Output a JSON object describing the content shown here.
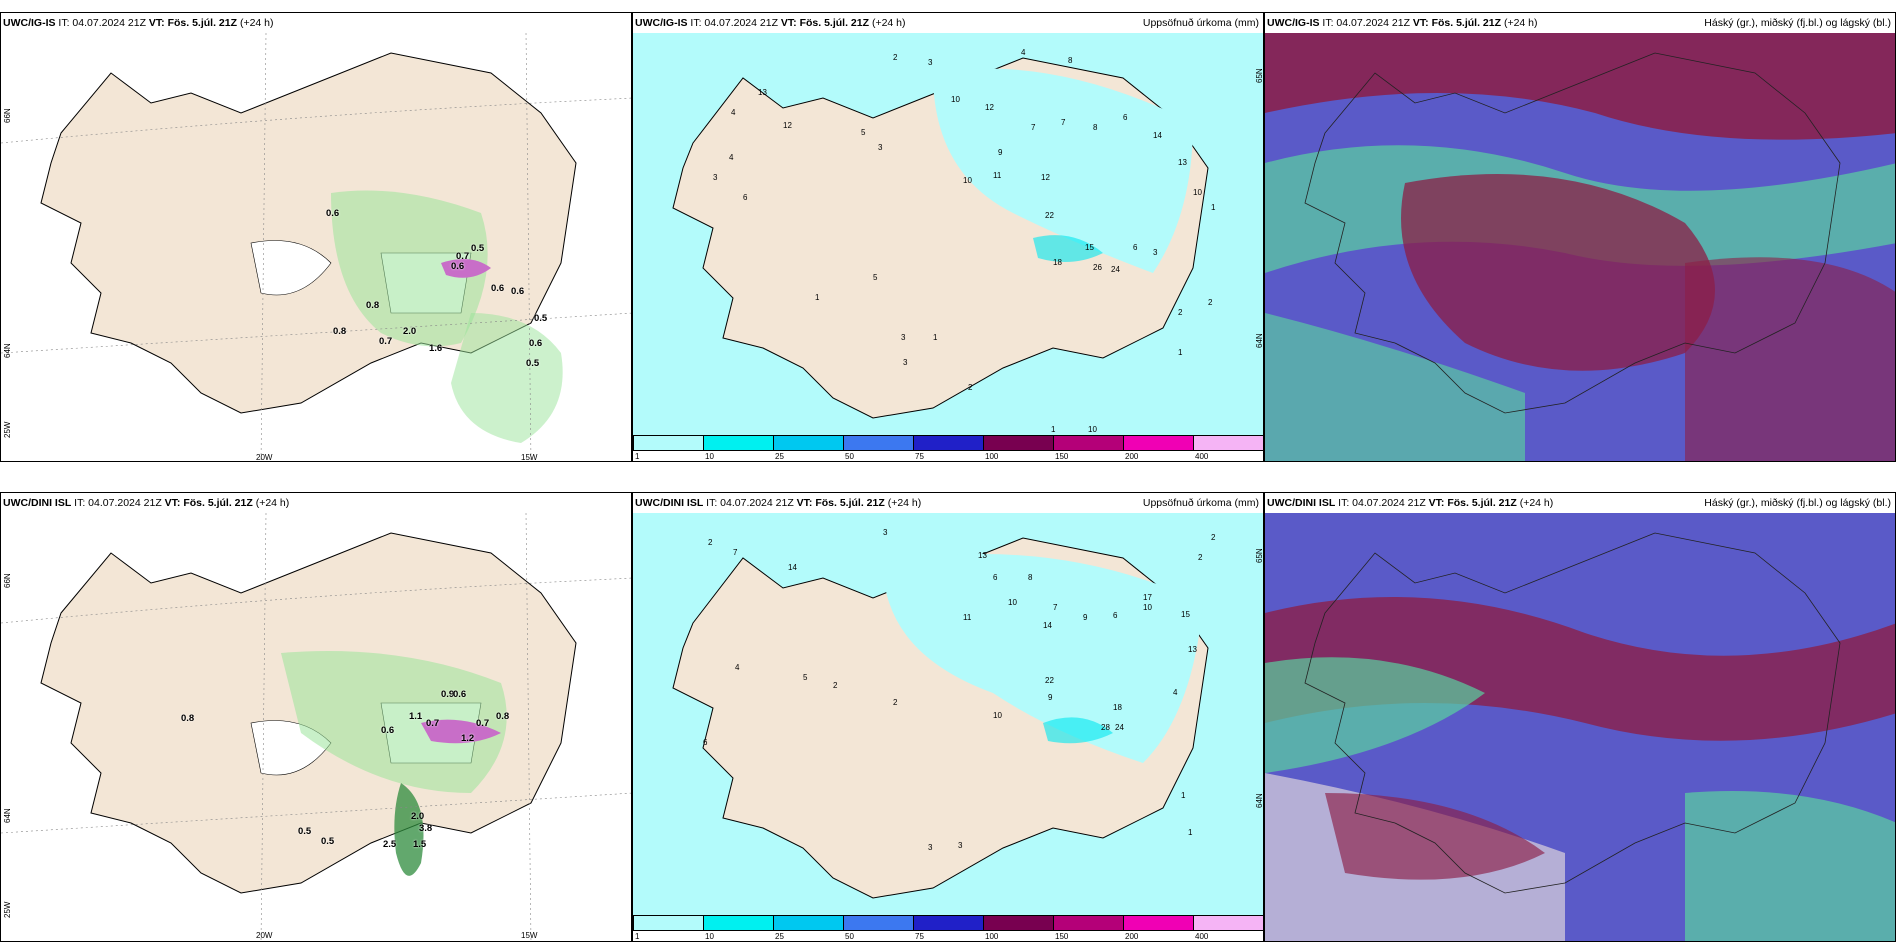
{
  "panels": [
    {
      "id": "r1c1",
      "source": "UWC/IG-IS",
      "it": "IT: 04.07.2024 21Z",
      "vt_label": "VT:",
      "vt": "Fös. 5.júl. 21Z",
      "lead": "(+24 h)",
      "right_title": "",
      "lat_labels": [
        "66N",
        "64N",
        "25W"
      ],
      "lon_labels": [
        "20W",
        "15W"
      ],
      "snow_values": [
        "0.6",
        "0.5",
        "0.7",
        "0.6",
        "0.6",
        "0.6",
        "0.8",
        "0.8",
        "0.7",
        "2.0",
        "1.6",
        "0.5",
        "0.6",
        "0.5"
      ]
    },
    {
      "id": "r1c2",
      "source": "UWC/IG-IS",
      "it": "IT: 04.07.2024 21Z",
      "vt_label": "VT:",
      "vt": "Fös. 5.júl. 21Z",
      "lead": "(+24 h)",
      "right_title": "Uppsöfnuð úrkoma (mm)",
      "lat_labels": [
        "65N",
        "64N"
      ],
      "precip_values": [
        "2",
        "3",
        "4",
        "8",
        "13",
        "12",
        "4",
        "5",
        "3",
        "10",
        "12",
        "7",
        "7",
        "8",
        "6",
        "14",
        "9",
        "11",
        "10",
        "13",
        "10",
        "22",
        "12",
        "15",
        "18",
        "26",
        "24",
        "3",
        "6",
        "2",
        "2",
        "1",
        "5",
        "3",
        "1",
        "2",
        "3",
        "1",
        "10",
        "1",
        "1",
        "4",
        "3",
        "6"
      ]
    },
    {
      "id": "r1c3",
      "source": "UWC/IG-IS",
      "it": "IT: 04.07.2024 21Z",
      "vt_label": "VT:",
      "vt": "Fös. 5.júl. 21Z",
      "lead": "(+24 h)",
      "right_title": "Háský (gr.), miðský (fj.bl.) og lágský (bl.)"
    },
    {
      "id": "r2c1",
      "source": "UWC/DINI ISL",
      "it": "IT: 04.07.2024 21Z",
      "vt_label": "VT:",
      "vt": "Fös. 5.júl. 21Z",
      "lead": "(+24 h)",
      "right_title": "",
      "lat_labels": [
        "66N",
        "64N",
        "25W"
      ],
      "lon_labels": [
        "20W",
        "15W"
      ],
      "snow_values": [
        "0.8",
        "0.6",
        "1.1",
        "0.7",
        "0.9",
        "0.6",
        "0.7",
        "0.8",
        "1.2",
        "0.5",
        "0.5",
        "2.0",
        "3.8",
        "2.5",
        "1.5"
      ]
    },
    {
      "id": "r2c2",
      "source": "UWC/DINI ISL",
      "it": "IT: 04.07.2024 21Z",
      "vt_label": "VT:",
      "vt": "Fös. 5.júl. 21Z",
      "lead": "(+24 h)",
      "right_title": "Uppsöfnuð úrkoma (mm)",
      "lat_labels": [
        "65N",
        "64N"
      ],
      "precip_values": [
        "2",
        "3",
        "7",
        "14",
        "13",
        "6",
        "8",
        "11",
        "10",
        "7",
        "9",
        "6",
        "10",
        "14",
        "22",
        "9",
        "10",
        "18",
        "28",
        "24",
        "17",
        "15",
        "13",
        "2",
        "2",
        "4",
        "6",
        "1",
        "3",
        "3",
        "1",
        "2",
        "4",
        "5",
        "2"
      ]
    },
    {
      "id": "r2c3",
      "source": "UWC/DINI ISL",
      "it": "IT: 04.07.2024 21Z",
      "vt_label": "VT:",
      "vt": "Fös. 5.júl. 21Z",
      "lead": "(+24 h)",
      "right_title": "Háský (gr.), miðský (fj.bl.) og lágský (bl.)"
    }
  ],
  "colorbar": {
    "labels": [
      "1",
      "10",
      "25",
      "50",
      "75",
      "100",
      "150",
      "200",
      "400"
    ],
    "colors": [
      "#b3fbfb",
      "#00f0f0",
      "#00c8f0",
      "#3c78f0",
      "#2020c8",
      "#780050",
      "#b40078",
      "#f000b4",
      "#f5b4f5"
    ]
  },
  "colors": {
    "land": "#f3e6d6",
    "sea": "#ffffff",
    "precip": "#b3fbfb",
    "snow": "#9ae39a",
    "high": "#5ad2a0",
    "mid": "#5a5ac8",
    "low": "#8c1e46"
  }
}
